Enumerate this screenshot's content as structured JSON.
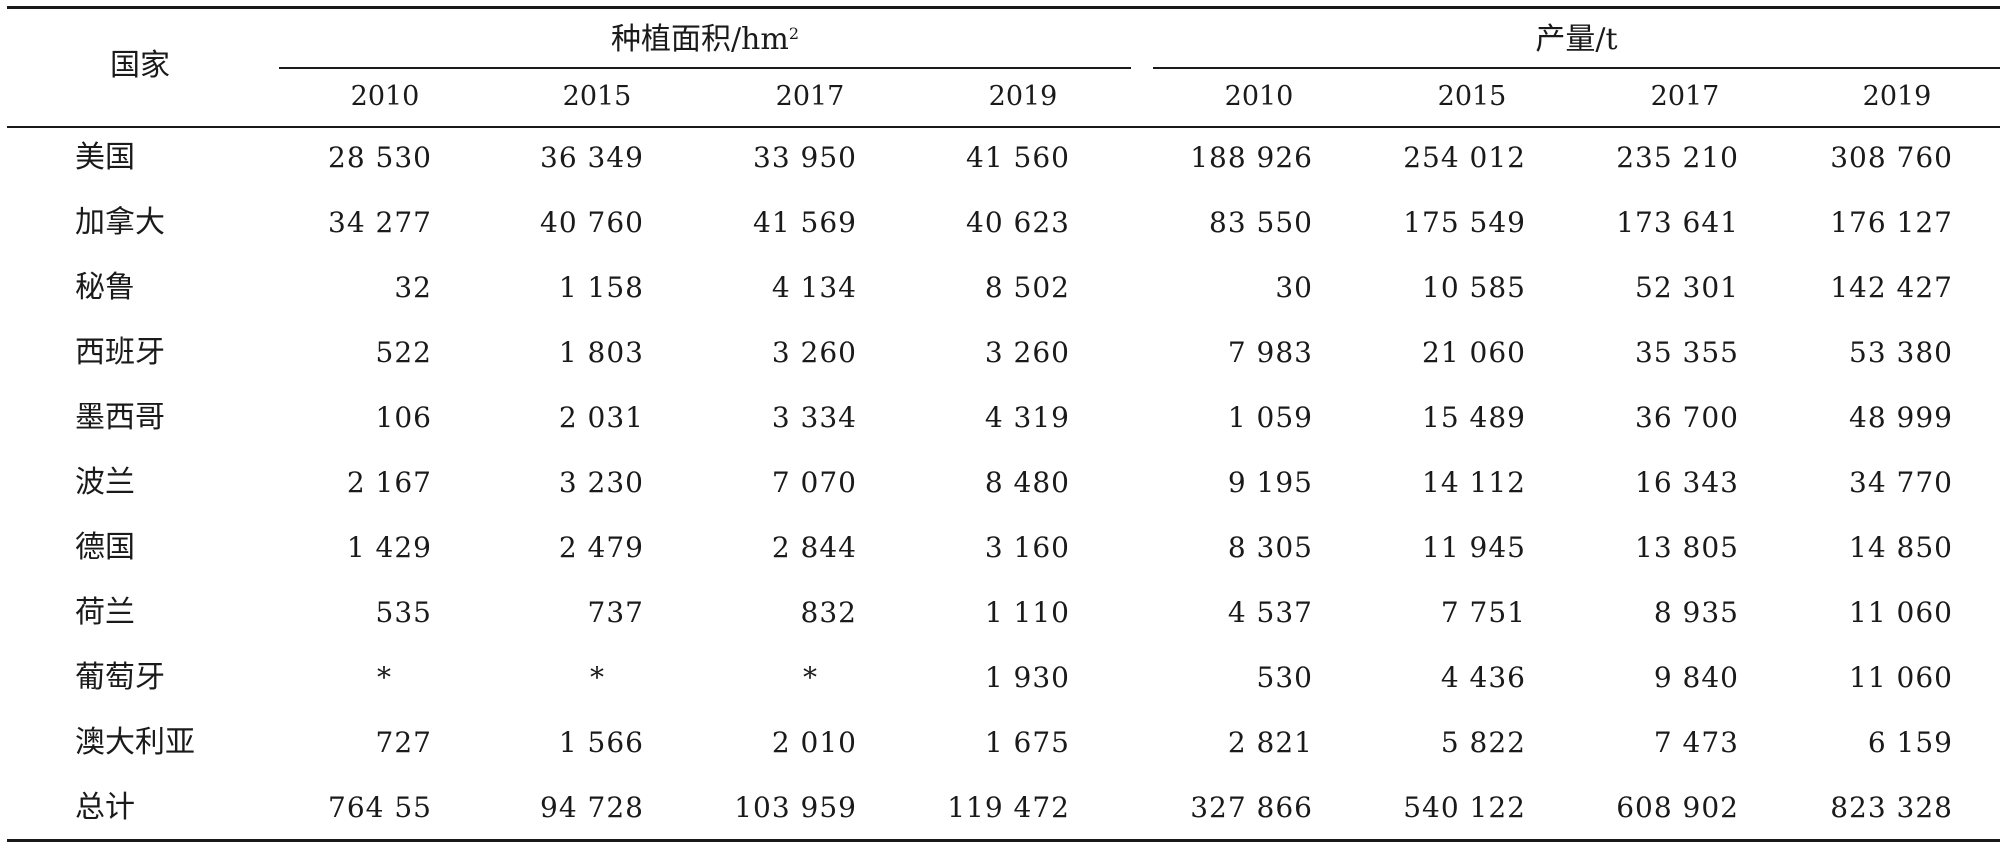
{
  "header": {
    "country": "国家",
    "area_group": "种植面积/hm",
    "area_sup": "2",
    "yield_group": "产量/t",
    "area_years": [
      "2010",
      "2015",
      "2017",
      "2019"
    ],
    "yield_years": [
      "2010",
      "2015",
      "2017",
      "2019"
    ]
  },
  "rows": [
    {
      "country": "美国",
      "area": [
        "28 530",
        "36 349",
        "33 950",
        "41 560"
      ],
      "yield": [
        "188 926",
        "254 012",
        "235 210",
        "308 760"
      ]
    },
    {
      "country": "加拿大",
      "area": [
        "34 277",
        "40 760",
        "41 569",
        "40 623"
      ],
      "yield": [
        "83 550",
        "175 549",
        "173 641",
        "176 127"
      ]
    },
    {
      "country": "秘鲁",
      "area": [
        "32",
        "1 158",
        "4 134",
        "8 502"
      ],
      "yield": [
        "30",
        "10 585",
        "52 301",
        "142 427"
      ]
    },
    {
      "country": "西班牙",
      "area": [
        "522",
        "1 803",
        "3 260",
        "3 260"
      ],
      "yield": [
        "7 983",
        "21 060",
        "35 355",
        "53 380"
      ]
    },
    {
      "country": "墨西哥",
      "area": [
        "106",
        "2 031",
        "3 334",
        "4 319"
      ],
      "yield": [
        "1 059",
        "15 489",
        "36 700",
        "48 999"
      ]
    },
    {
      "country": "波兰",
      "area": [
        "2 167",
        "3 230",
        "7 070",
        "8 480"
      ],
      "yield": [
        "9 195",
        "14 112",
        "16 343",
        "34 770"
      ]
    },
    {
      "country": "德国",
      "area": [
        "1 429",
        "2 479",
        "2 844",
        "3 160"
      ],
      "yield": [
        "8 305",
        "11 945",
        "13 805",
        "14 850"
      ]
    },
    {
      "country": "荷兰",
      "area": [
        "535",
        "737",
        "832",
        "1 110"
      ],
      "yield": [
        "4 537",
        "7 751",
        "8 935",
        "11 060"
      ]
    },
    {
      "country": "葡萄牙",
      "area": [
        "*",
        "*",
        "*",
        "1 930"
      ],
      "yield": [
        "530",
        "4 436",
        "9 840",
        "11 060"
      ]
    },
    {
      "country": "澳大利亚",
      "area": [
        "727",
        "1 566",
        "2 010",
        "1 675"
      ],
      "yield": [
        "2 821",
        "5 822",
        "7 473",
        "6 159"
      ]
    },
    {
      "country": "总计",
      "area": [
        "764 55",
        "94 728",
        "103 959",
        "119 472"
      ],
      "yield": [
        "327 866",
        "540 122",
        "608 902",
        "823 328"
      ]
    }
  ]
}
